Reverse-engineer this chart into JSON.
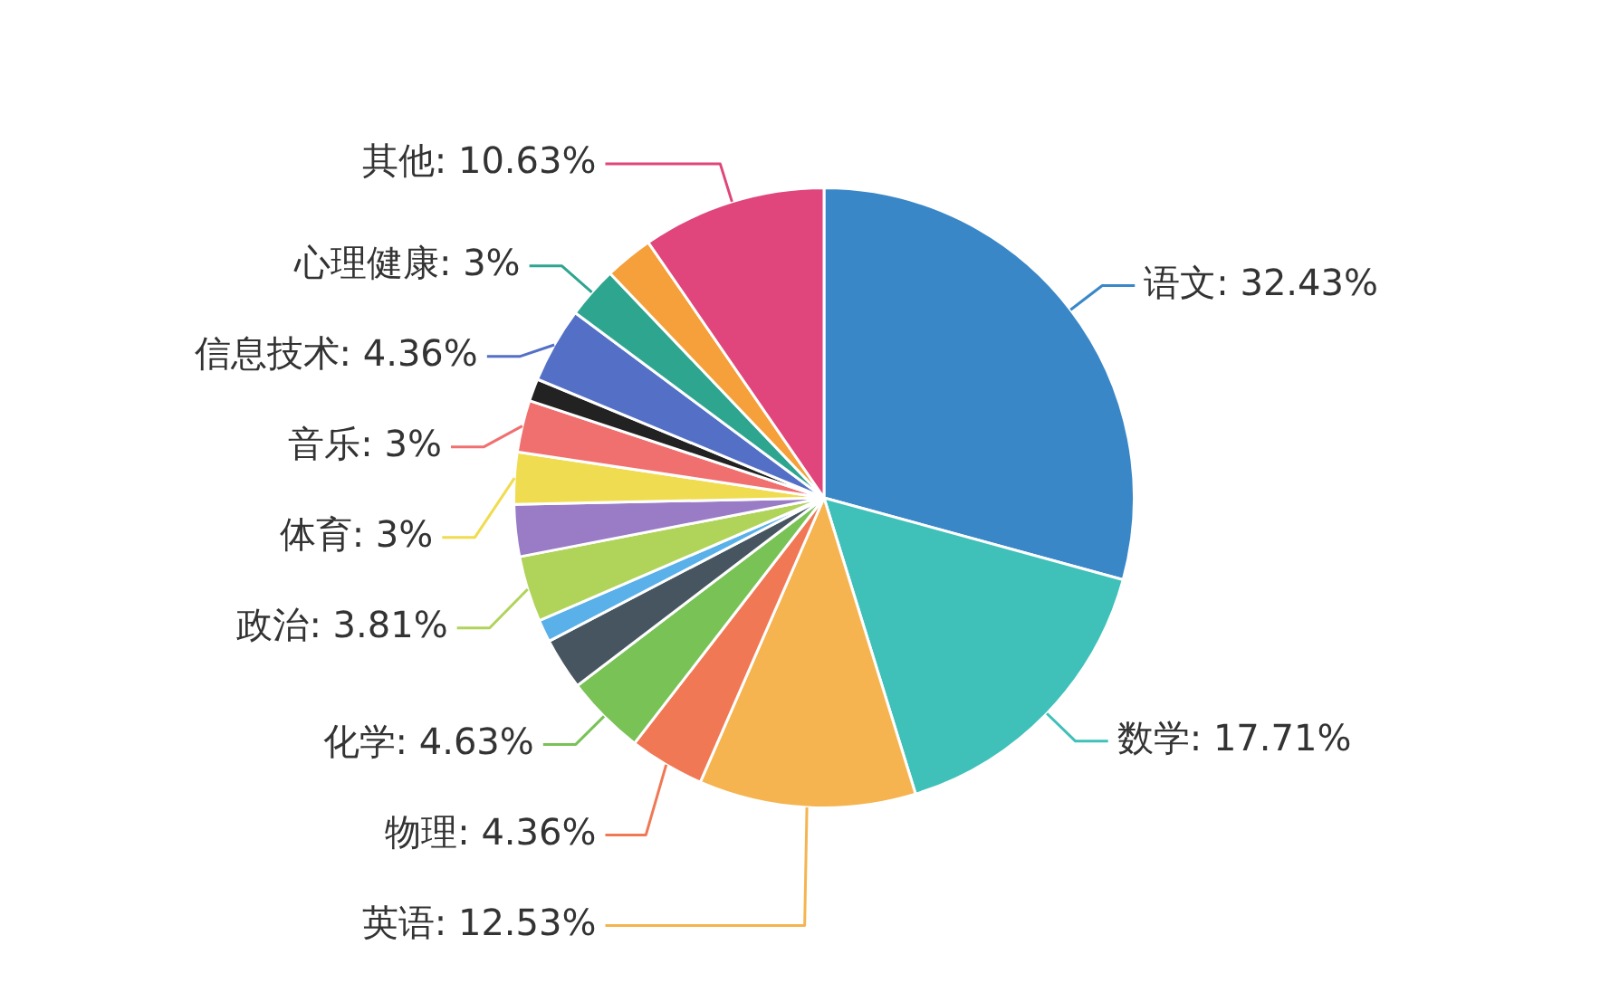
{
  "chart_data": {
    "type": "pie",
    "categories": [
      "语文",
      "数学",
      "英语",
      "物理",
      "化学",
      null,
      null,
      "政治",
      null,
      "体育",
      "音乐",
      null,
      "信息技术",
      "心理健康",
      null,
      "其他"
    ],
    "values": [
      32.43,
      17.71,
      12.53,
      4.36,
      4.63,
      3,
      1.3,
      3.81,
      3,
      3,
      3,
      1.3,
      4.36,
      3,
      2.8,
      10.63
    ],
    "value_labels": [
      "32.43%",
      "17.71%",
      "12.53%",
      "4.36%",
      "4.63%",
      null,
      null,
      "3.81%",
      null,
      "3%",
      "3%",
      null,
      "4.36%",
      "3%",
      null,
      "10.63%"
    ],
    "colors": [
      "#3a87c8",
      "#3fc0b9",
      "#f5b450",
      "#f07855",
      "#78c256",
      "#46555f",
      "#5ab0e8",
      "#b0d35a",
      "#9a7bc6",
      "#f0dc50",
      "#f07070",
      "#222222",
      "#5470c6",
      "#2ea58f",
      "#f5a03a",
      "#e0457b"
    ],
    "legend": false
  }
}
